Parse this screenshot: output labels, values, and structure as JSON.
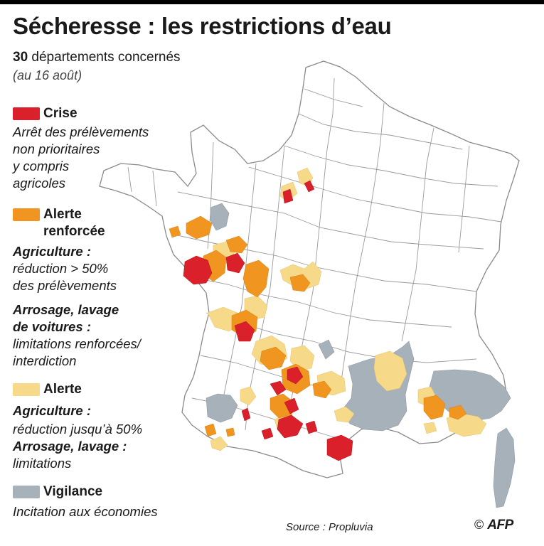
{
  "header": {
    "title": "Sécheresse : les restrictions d’eau",
    "count": "30",
    "count_label": "départements concernés",
    "date": "(au 16 août)"
  },
  "legend": {
    "crise": {
      "label": "Crise",
      "color": "#d9202b",
      "desc": [
        "Arrêt des prélèvements",
        "non prioritaires",
        "y compris",
        "agricoles"
      ]
    },
    "alerte_renforcee": {
      "label_1": "Alerte",
      "label_2": "renforcée",
      "color": "#f0951f",
      "agri_label": "Agriculture :",
      "agri_desc": [
        "réduction > 50%",
        "des prélèvements"
      ],
      "arro_label_1": "Arrosage, lavage",
      "arro_label_2": "de voitures :",
      "arro_desc": [
        "limitations renforcées/",
        "interdiction"
      ]
    },
    "alerte": {
      "label": "Alerte",
      "color": "#f7d98a",
      "agri_label": "Agriculture :",
      "agri_desc": "réduction jusqu’à 50%",
      "arro_label": "Arrosage, lavage :",
      "arro_desc": "limitations"
    },
    "vigilance": {
      "label": "Vigilance",
      "color": "#a7b1b9",
      "desc": "Incitation aux économies"
    }
  },
  "footer": {
    "source": "Source : Propluvia",
    "copyright": "©",
    "agency": "AFP"
  }
}
